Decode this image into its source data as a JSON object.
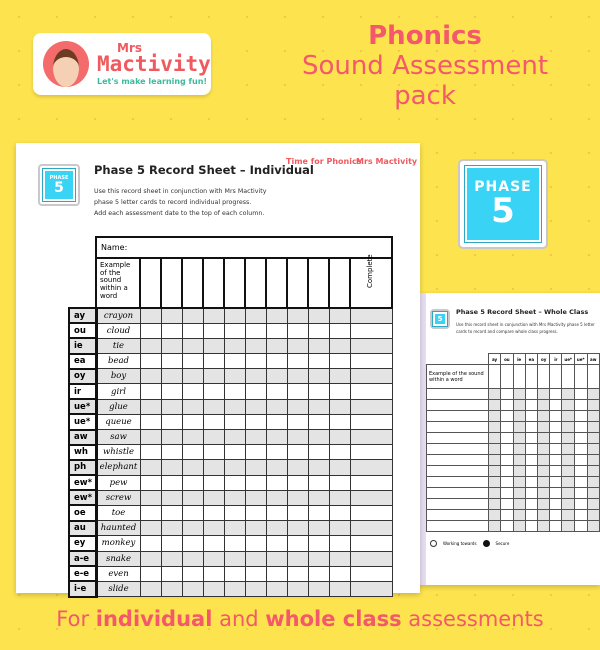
{
  "logo": {
    "mrs": "Mrs",
    "brand": "Mactivity",
    "tagline": "Let's make learning fun!"
  },
  "title": {
    "line1": "Phonics",
    "line2": "Sound Assessment",
    "line3": "pack"
  },
  "badge": {
    "phase": "PHASE",
    "number": "5",
    "color": "#39d3f5"
  },
  "individual": {
    "title": "Phase 5 Record Sheet – Individual",
    "description": [
      "Use this record sheet in conjunction with Mrs Mactivity",
      "phase 5 letter cards to record individual progress.",
      "Add each assessment date to the top of each column."
    ],
    "logo_phonics": "Time for Phonics",
    "logo_brand": "Mrs Mactivity",
    "name_label": "Name:",
    "example_header": "Example of the sound within a word",
    "complete_header": "Complete",
    "rows": [
      [
        "ay",
        "crayon"
      ],
      [
        "ou",
        "cloud"
      ],
      [
        "ie",
        "tie"
      ],
      [
        "ea",
        "bead"
      ],
      [
        "oy",
        "boy"
      ],
      [
        "ir",
        "girl"
      ],
      [
        "ue*",
        "glue"
      ],
      [
        "ue*",
        "queue"
      ],
      [
        "aw",
        "saw"
      ],
      [
        "wh",
        "whistle"
      ],
      [
        "ph",
        "elephant"
      ],
      [
        "ew*",
        "pew"
      ],
      [
        "ew*",
        "screw"
      ],
      [
        "oe",
        "toe"
      ],
      [
        "au",
        "haunted"
      ],
      [
        "ey",
        "monkey"
      ],
      [
        "a-e",
        "snake"
      ],
      [
        "e-e",
        "even"
      ],
      [
        "i-e",
        "slide"
      ]
    ]
  },
  "whole_class": {
    "title": "Phase 5 Record Sheet – Whole Class",
    "description": "Use this record sheet in conjunction with Mrs Mactivity phase 5 letter cards to record and compare whole class progress.",
    "example_header": "Example of the sound within a word",
    "sounds": [
      "ay",
      "ou",
      "ie",
      "ea",
      "oy",
      "ir",
      "ue*",
      "ue*",
      "aw"
    ],
    "legend_working": "Working towards",
    "legend_secure": "Secure"
  },
  "footer": {
    "pre": "For ",
    "b1": "individual",
    "mid": " and ",
    "b2": "whole class",
    "post": " assessments"
  }
}
